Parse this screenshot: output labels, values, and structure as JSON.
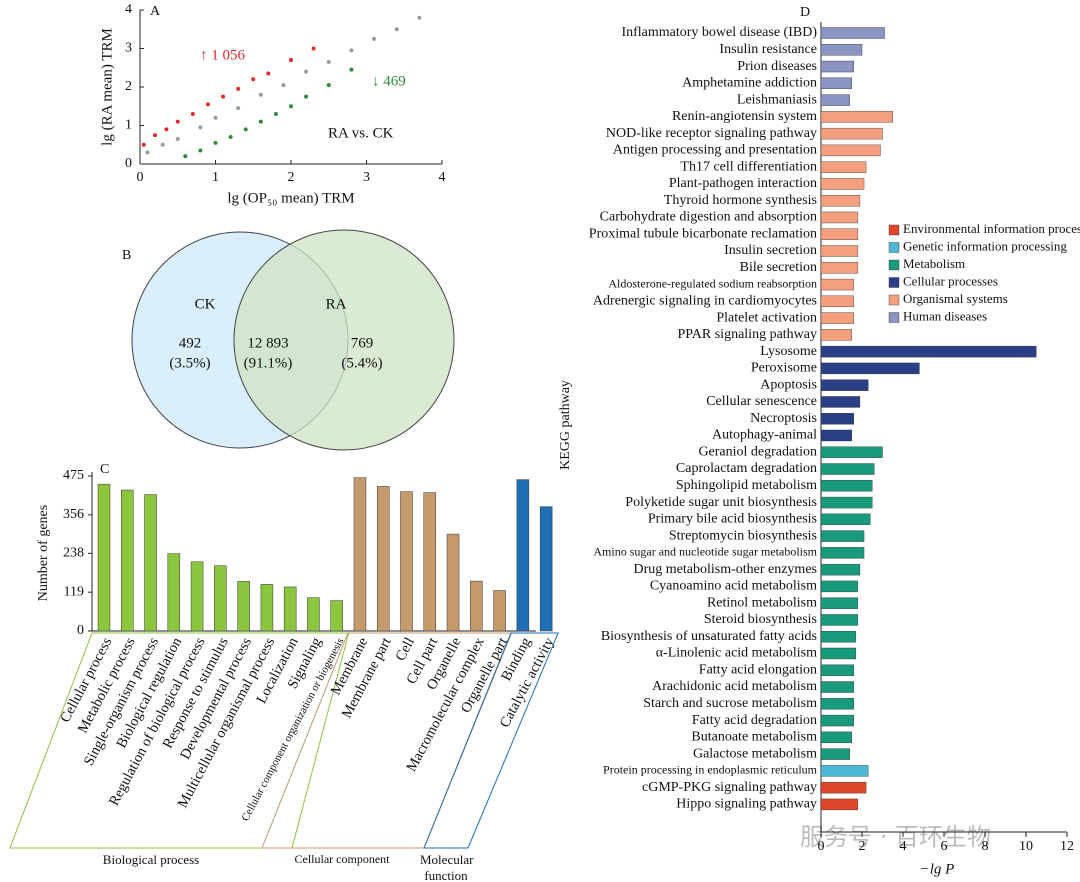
{
  "chart_data": [
    {
      "type": "scatter",
      "label": "A",
      "x_label": "lg (OP₅₀ mean) TRM",
      "y_label": "lg (RA mean) TRM",
      "xlim": [
        0,
        4
      ],
      "ylim": [
        0,
        4
      ],
      "xticks": [
        0,
        1,
        2,
        3,
        4
      ],
      "yticks": [
        0,
        1,
        2,
        3,
        4
      ],
      "annotations": [
        {
          "text": "↑ 1 056",
          "color": "#e02b2b"
        },
        {
          "text": "↓ 469",
          "color": "#2e8b3a"
        },
        {
          "text": "RA vs. CK",
          "color": "#111111"
        }
      ],
      "series": [
        {
          "color": "#9a9a9a",
          "x": [
            0.1,
            0.3,
            0.5,
            0.8,
            1.0,
            1.3,
            1.6,
            1.9,
            2.2,
            2.5,
            2.8,
            3.1,
            3.4,
            3.7
          ],
          "values": [
            0.3,
            0.5,
            0.65,
            0.95,
            1.2,
            1.45,
            1.8,
            2.05,
            2.4,
            2.65,
            2.95,
            3.25,
            3.5,
            3.8
          ]
        },
        {
          "color": "#e02b2b",
          "x": [
            0.05,
            0.2,
            0.35,
            0.5,
            0.7,
            0.9,
            1.1,
            1.3,
            1.5,
            1.7,
            2.0,
            2.3
          ],
          "values": [
            0.5,
            0.75,
            0.9,
            1.1,
            1.3,
            1.55,
            1.75,
            1.95,
            2.2,
            2.35,
            2.7,
            3.0
          ]
        },
        {
          "color": "#2e8b3a",
          "x": [
            0.6,
            0.8,
            1.0,
            1.2,
            1.4,
            1.6,
            1.8,
            2.0,
            2.2,
            2.5,
            2.8
          ],
          "values": [
            0.2,
            0.35,
            0.55,
            0.7,
            0.9,
            1.1,
            1.3,
            1.5,
            1.75,
            2.05,
            2.45
          ]
        }
      ]
    },
    {
      "type": "venn",
      "label": "B",
      "sets": [
        {
          "name": "CK",
          "color": "#daeefc"
        },
        {
          "name": "RA",
          "color": "#cfe3c4"
        }
      ],
      "values": [
        492,
        12893,
        769
      ],
      "value_labels": [
        "492",
        "12 893",
        "769"
      ],
      "percentages": [
        3.5,
        91.1,
        5.4
      ],
      "percentage_labels": [
        "(3.5%)",
        "(91.1%)",
        "(5.4%)"
      ]
    },
    {
      "type": "bar",
      "label": "C",
      "y_label": "Number of genes",
      "ylim": [
        0,
        475
      ],
      "yticks": [
        0,
        119,
        238,
        356,
        475
      ],
      "categories": [
        "Cellular process",
        "Metabolic process",
        "Single-organism process",
        "Biological regulation",
        "Regulation of biological process",
        "Response to stimulus",
        "Developmental process",
        "Multicellular organismal process",
        "Localization",
        "Signaling",
        "Cellular component organization or biogenesis",
        "Membrane",
        "Membrane part",
        "Cell",
        "Cell part",
        "Organelle",
        "Macromolecular complex",
        "Organelle part",
        "Binding",
        "Catalytic activity"
      ],
      "values": [
        450,
        432,
        418,
        237,
        212,
        200,
        152,
        143,
        135,
        102,
        93,
        470,
        443,
        427,
        424,
        297,
        153,
        124,
        464,
        381
      ],
      "colors": [
        "#8cc63f",
        "#8cc63f",
        "#8cc63f",
        "#8cc63f",
        "#8cc63f",
        "#8cc63f",
        "#8cc63f",
        "#8cc63f",
        "#8cc63f",
        "#8cc63f",
        "#8cc63f",
        "#c49a6c",
        "#c49a6c",
        "#c49a6c",
        "#c49a6c",
        "#c49a6c",
        "#c49a6c",
        "#c49a6c",
        "#1f6fb5",
        "#1f6fb5"
      ],
      "groups": [
        {
          "name": "Biological process",
          "color": "#8cc63f"
        },
        {
          "name": "Cellular component",
          "color": "#c49a6c"
        },
        {
          "name": "Molecular function",
          "color": "#1f6fb5"
        }
      ]
    },
    {
      "type": "hbar",
      "label": "D",
      "y_label": "KEGG pathway",
      "x_label": "−lg P",
      "xlim": [
        0,
        12
      ],
      "xticks": [
        0,
        2,
        4,
        6,
        8,
        10,
        12
      ],
      "categories": [
        "Inflammatory bowel disease (IBD)",
        "Insulin resistance",
        "Prion diseases",
        "Amphetamine addiction",
        "Leishmaniasis",
        "Renin-angiotensin system",
        "NOD-like receptor signaling pathway",
        "Antigen processing and presentation",
        "Th17 cell differentiation",
        "Plant-pathogen interaction",
        "Thyroid hormone synthesis",
        "Carbohydrate digestion and absorption",
        "Proximal tubule bicarbonate reclamation",
        "Insulin secretion",
        "Bile secretion",
        "Aldosterone-regulated sodium reabsorption",
        "Adrenergic signaling in cardiomyocytes",
        "Platelet activation",
        "PPAR signaling pathway",
        "Lysosome",
        "Peroxisome",
        "Apoptosis",
        "Cellular senescence",
        "Necroptosis",
        "Autophagy-animal",
        "Geraniol degradation",
        "Caprolactam degradation",
        "Sphingolipid metabolism",
        "Polyketide sugar unit biosynthesis",
        "Primary bile acid biosynthesis",
        "Streptomycin biosynthesis",
        "Amino sugar and nucleotide sugar metabolism",
        "Drug metabolism-other enzymes",
        "Cyanoamino acid metabolism",
        "Retinol metabolism",
        "Steroid biosynthesis",
        "Biosynthesis of unsaturated fatty acids",
        "α-Linolenic acid metabolism",
        "Fatty acid elongation",
        "Arachidonic acid metabolism",
        "Starch and sucrose metabolism",
        "Fatty acid degradation",
        "Butanoate metabolism",
        "Galactose metabolism",
        "Protein processing in endoplasmic reticulum",
        "cGMP-PKG signaling pathway",
        "Hippo signaling pathway"
      ],
      "values": [
        3.1,
        2.0,
        1.6,
        1.5,
        1.4,
        3.5,
        3.0,
        2.9,
        2.2,
        2.1,
        1.9,
        1.8,
        1.8,
        1.8,
        1.8,
        1.6,
        1.6,
        1.6,
        1.5,
        10.5,
        4.8,
        2.3,
        1.9,
        1.6,
        1.5,
        3.0,
        2.6,
        2.5,
        2.5,
        2.4,
        2.1,
        2.1,
        1.9,
        1.8,
        1.8,
        1.8,
        1.7,
        1.7,
        1.6,
        1.6,
        1.6,
        1.6,
        1.5,
        1.4,
        2.3,
        2.2,
        1.8
      ],
      "colors": [
        "#8b95c4",
        "#8b95c4",
        "#8b95c4",
        "#8b95c4",
        "#8b95c4",
        "#f4a07e",
        "#f4a07e",
        "#f4a07e",
        "#f4a07e",
        "#f4a07e",
        "#f4a07e",
        "#f4a07e",
        "#f4a07e",
        "#f4a07e",
        "#f4a07e",
        "#f4a07e",
        "#f4a07e",
        "#f4a07e",
        "#f4a07e",
        "#2b3f86",
        "#2b3f86",
        "#2b3f86",
        "#2b3f86",
        "#2b3f86",
        "#2b3f86",
        "#1a9a7c",
        "#1a9a7c",
        "#1a9a7c",
        "#1a9a7c",
        "#1a9a7c",
        "#1a9a7c",
        "#1a9a7c",
        "#1a9a7c",
        "#1a9a7c",
        "#1a9a7c",
        "#1a9a7c",
        "#1a9a7c",
        "#1a9a7c",
        "#1a9a7c",
        "#1a9a7c",
        "#1a9a7c",
        "#1a9a7c",
        "#1a9a7c",
        "#1a9a7c",
        "#4db8d4",
        "#e0462a",
        "#e0462a"
      ],
      "legend": [
        {
          "name": "Environmental information processing",
          "color": "#e0462a"
        },
        {
          "name": "Genetic information processing",
          "color": "#4db8d4"
        },
        {
          "name": "Metabolism",
          "color": "#1a9a7c"
        },
        {
          "name": "Cellular processes",
          "color": "#2b3f86"
        },
        {
          "name": "Organismal systems",
          "color": "#f4a07e"
        },
        {
          "name": "Human diseases",
          "color": "#8b95c4"
        }
      ],
      "legend_position": "right"
    }
  ],
  "watermark": "服务号 · 百环生物"
}
